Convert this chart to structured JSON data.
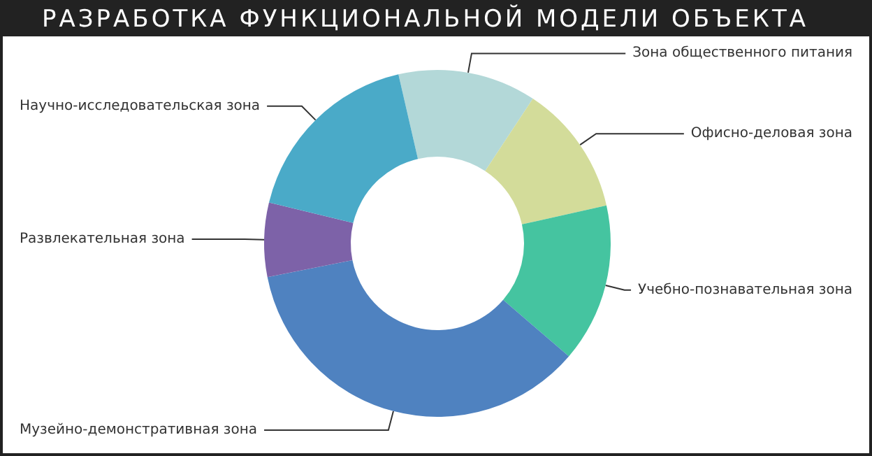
{
  "chart_data": {
    "type": "donut",
    "title": "РАЗРАБОТКА ФУНКЦИОНАЛЬНОЙ МОДЕЛИ ОБЪЕКТА",
    "categories": [
      "Зона общественного питания",
      "Офисно-деловая зона",
      "Учебно-познавательная зона",
      "Музейно-демонстративная зона",
      "Развлекательная зона",
      "Научно-исследовательская зона"
    ],
    "values": [
      12.9,
      12.2,
      14.8,
      35.6,
      6.9,
      17.6
    ],
    "colors": [
      "#b3d8d8",
      "#d3dc9a",
      "#45c4a0",
      "#4f82c0",
      "#7d62a8",
      "#4aaac8"
    ],
    "legend": false
  }
}
